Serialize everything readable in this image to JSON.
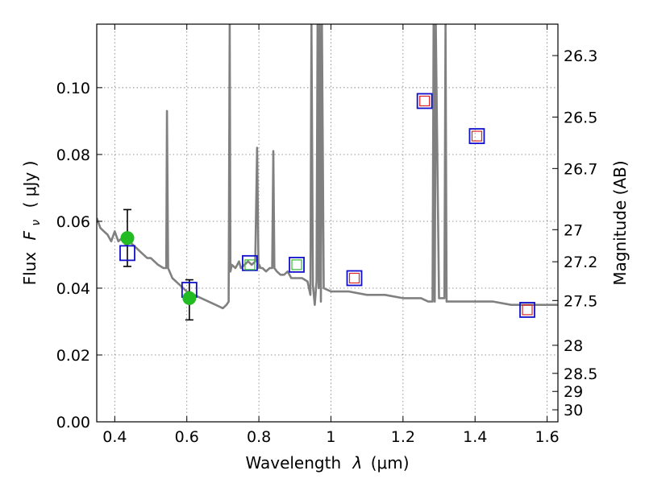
{
  "chart_data": {
    "type": "scatter",
    "xlabel_text": "Wavelength",
    "xlabel_symbol": "λ",
    "xlabel_unit": "(μm)",
    "ylabel_text": "Flux",
    "ylabel_symbol": "F",
    "ylabel_subscript": "ν",
    "ylabel_unit": "( μJy )",
    "y2label": "Magnitude (AB)",
    "xlim": [
      0.35,
      1.63
    ],
    "ylim": [
      0.0,
      0.119
    ],
    "grid": true,
    "x_ticks": [
      0.4,
      0.6,
      0.8,
      1.0,
      1.2,
      1.4,
      1.6
    ],
    "x_tick_labels": [
      "0.4",
      "0.6",
      "0.8",
      "1",
      "1.2",
      "1.4",
      "1.6"
    ],
    "y_ticks": [
      0.0,
      0.02,
      0.04,
      0.06,
      0.08,
      0.1
    ],
    "y_tick_labels": [
      "0.00",
      "0.02",
      "0.04",
      "0.06",
      "0.08",
      "0.10"
    ],
    "y2_ticks": [
      {
        "label": "26.3",
        "flux": 0.1096
      },
      {
        "label": "26.5",
        "flux": 0.0912
      },
      {
        "label": "26.7",
        "flux": 0.0758
      },
      {
        "label": "27",
        "flux": 0.0575
      },
      {
        "label": "27.2",
        "flux": 0.0479
      },
      {
        "label": "27.5",
        "flux": 0.0363
      },
      {
        "label": "28",
        "flux": 0.0229
      },
      {
        "label": "28.5",
        "flux": 0.0145
      },
      {
        "label": "29",
        "flux": 0.0091
      },
      {
        "label": "30",
        "flux": 0.0036
      }
    ],
    "sed_model": {
      "color": "#808080",
      "x": [
        0.35,
        0.36,
        0.37,
        0.38,
        0.39,
        0.4,
        0.41,
        0.42,
        0.43,
        0.44,
        0.45,
        0.46,
        0.47,
        0.48,
        0.49,
        0.5,
        0.51,
        0.52,
        0.535,
        0.543,
        0.545,
        0.548,
        0.56,
        0.58,
        0.6,
        0.62,
        0.64,
        0.66,
        0.68,
        0.7,
        0.71,
        0.716,
        0.719,
        0.721,
        0.725,
        0.735,
        0.74,
        0.745,
        0.75,
        0.76,
        0.77,
        0.78,
        0.79,
        0.795,
        0.799,
        0.801,
        0.805,
        0.81,
        0.82,
        0.83,
        0.837,
        0.84,
        0.843,
        0.85,
        0.86,
        0.87,
        0.88,
        0.89,
        0.9,
        0.91,
        0.92,
        0.935,
        0.943,
        0.946,
        0.95,
        0.955,
        0.96,
        0.963,
        0.966,
        0.969,
        0.972,
        0.975,
        0.98,
        1.0,
        1.05,
        1.1,
        1.15,
        1.2,
        1.25,
        1.27,
        1.282,
        1.285,
        1.288,
        1.291,
        1.3,
        1.315,
        1.318,
        1.321,
        1.35,
        1.4,
        1.45,
        1.5,
        1.55,
        1.6,
        1.63
      ],
      "y": [
        0.061,
        0.058,
        0.057,
        0.056,
        0.054,
        0.057,
        0.054,
        0.055,
        0.053,
        0.054,
        0.053,
        0.052,
        0.051,
        0.05,
        0.049,
        0.049,
        0.048,
        0.047,
        0.046,
        0.046,
        0.093,
        0.046,
        0.043,
        0.041,
        0.039,
        0.038,
        0.037,
        0.036,
        0.035,
        0.034,
        0.035,
        0.036,
        0.119,
        0.045,
        0.047,
        0.046,
        0.047,
        0.048,
        0.046,
        0.047,
        0.048,
        0.047,
        0.048,
        0.082,
        0.046,
        0.047,
        0.046,
        0.046,
        0.045,
        0.046,
        0.046,
        0.081,
        0.046,
        0.045,
        0.044,
        0.044,
        0.045,
        0.043,
        0.043,
        0.043,
        0.043,
        0.042,
        0.038,
        0.119,
        0.041,
        0.035,
        0.042,
        0.119,
        0.04,
        0.119,
        0.036,
        0.119,
        0.04,
        0.039,
        0.039,
        0.038,
        0.038,
        0.037,
        0.037,
        0.036,
        0.036,
        0.119,
        0.036,
        0.119,
        0.037,
        0.037,
        0.119,
        0.036,
        0.036,
        0.036,
        0.036,
        0.035,
        0.035,
        0.035,
        0.035
      ]
    },
    "observed_points": {
      "color": "#22bb22",
      "points": [
        {
          "x": 0.435,
          "y": 0.055,
          "err_low": 0.0465,
          "err_high": 0.0635
        },
        {
          "x": 0.607,
          "y": 0.037,
          "err_low": 0.0305,
          "err_high": 0.0425
        }
      ]
    },
    "blue_squares": {
      "color": "#1010cc",
      "points": [
        {
          "x": 0.435,
          "y": 0.0505
        },
        {
          "x": 0.607,
          "y": 0.0395
        },
        {
          "x": 0.775,
          "y": 0.0475
        },
        {
          "x": 0.905,
          "y": 0.047
        },
        {
          "x": 1.065,
          "y": 0.043
        },
        {
          "x": 1.26,
          "y": 0.096
        },
        {
          "x": 1.405,
          "y": 0.0855
        },
        {
          "x": 1.545,
          "y": 0.0335
        }
      ]
    },
    "green_inner_squares": {
      "color": "#33bb33",
      "points": [
        {
          "x": 0.775,
          "y": 0.047
        },
        {
          "x": 0.905,
          "y": 0.047
        }
      ]
    },
    "red_inner_squares": {
      "color": "#dd2222",
      "points": [
        {
          "x": 1.065,
          "y": 0.043
        },
        {
          "x": 1.26,
          "y": 0.096
        },
        {
          "x": 1.405,
          "y": 0.0855
        },
        {
          "x": 1.545,
          "y": 0.0335
        }
      ]
    }
  }
}
